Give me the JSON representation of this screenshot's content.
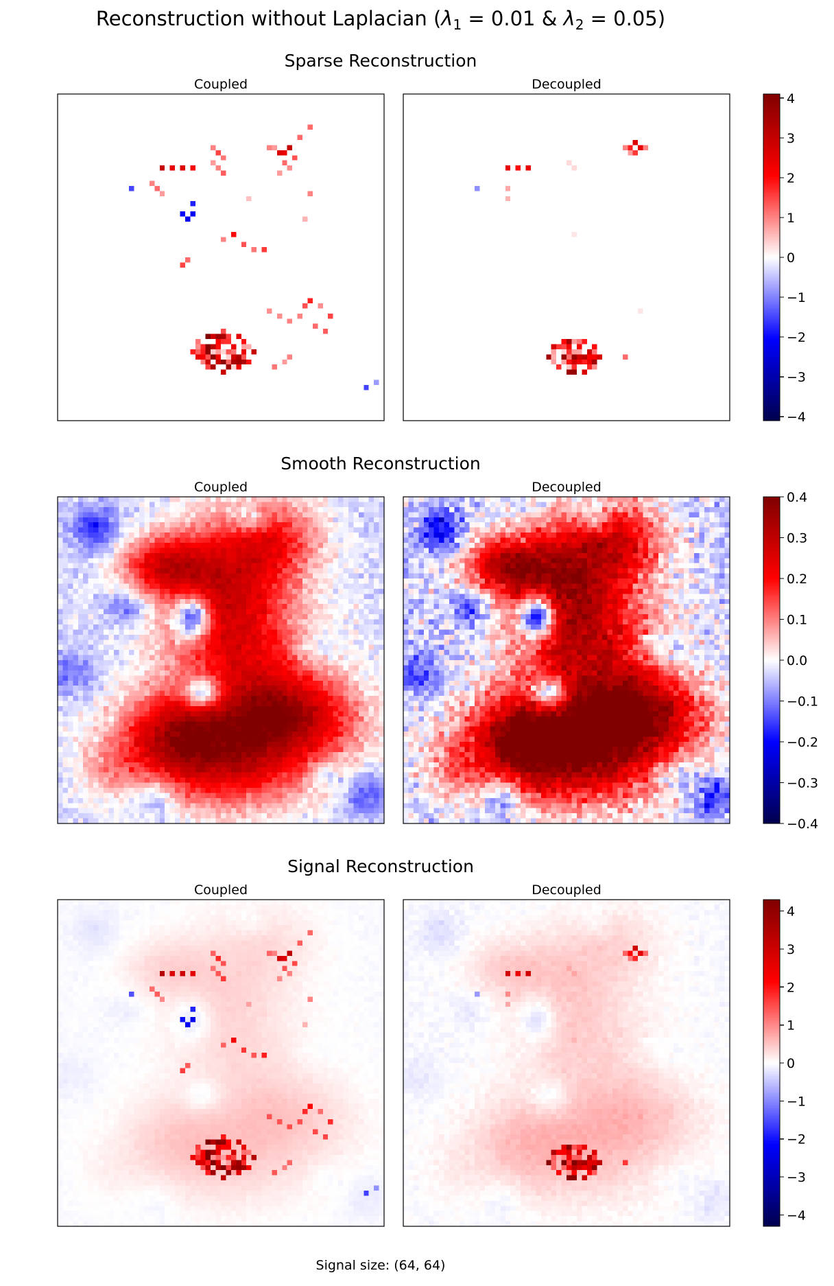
{
  "figure": {
    "title": "Reconstruction without Laplacian (λ1 = 0.01 & λ2 = 0.05)",
    "title_parts": {
      "prefix": "Reconstruction without Laplacian (",
      "lambda": "λ",
      "sub1": "1",
      "mid": " = 0.01 & ",
      "sub2": "2",
      "suffix": " = 0.05)"
    },
    "footer": "Signal size: (64, 64)"
  },
  "colormap": {
    "name": "seismic",
    "stops": [
      "#00004d",
      "#0000ff",
      "#ffffff",
      "#ff0000",
      "#800000"
    ]
  },
  "chart_data": [
    {
      "type": "heatmap",
      "row_title": "Sparse Reconstruction",
      "panels": [
        {
          "title": "Coupled",
          "field": "sparse",
          "variant": "coupled"
        },
        {
          "title": "Decoupled",
          "field": "sparse",
          "variant": "decoupled"
        }
      ],
      "grid_size": [
        64,
        64
      ],
      "colorbar": {
        "min": -4.1,
        "max": 4.1,
        "ticks": [
          -4,
          -3,
          -2,
          -1,
          0,
          1,
          2,
          3,
          4
        ],
        "tick_labels": [
          "−4",
          "−3",
          "−2",
          "−1",
          "0",
          "1",
          "2",
          "3",
          "4"
        ]
      }
    },
    {
      "type": "heatmap",
      "row_title": "Smooth Reconstruction",
      "panels": [
        {
          "title": "Coupled",
          "field": "smooth",
          "variant": "coupled"
        },
        {
          "title": "Decoupled",
          "field": "smooth",
          "variant": "decoupled"
        }
      ],
      "grid_size": [
        64,
        64
      ],
      "colorbar": {
        "min": -0.4,
        "max": 0.4,
        "ticks": [
          -0.4,
          -0.3,
          -0.2,
          -0.1,
          0.0,
          0.1,
          0.2,
          0.3,
          0.4
        ],
        "tick_labels": [
          "−0.4",
          "−0.3",
          "−0.2",
          "−0.1",
          "0.0",
          "0.1",
          "0.2",
          "0.3",
          "0.4"
        ]
      }
    },
    {
      "type": "heatmap",
      "row_title": "Signal Reconstruction",
      "panels": [
        {
          "title": "Coupled",
          "field": "signal",
          "variant": "coupled"
        },
        {
          "title": "Decoupled",
          "field": "signal",
          "variant": "decoupled"
        }
      ],
      "grid_size": [
        64,
        64
      ],
      "colorbar": {
        "min": -4.3,
        "max": 4.3,
        "ticks": [
          -4,
          -3,
          -2,
          -1,
          0,
          1,
          2,
          3,
          4
        ],
        "tick_labels": [
          "−4",
          "−3",
          "−2",
          "−1",
          "0",
          "1",
          "2",
          "3",
          "4"
        ]
      }
    }
  ]
}
